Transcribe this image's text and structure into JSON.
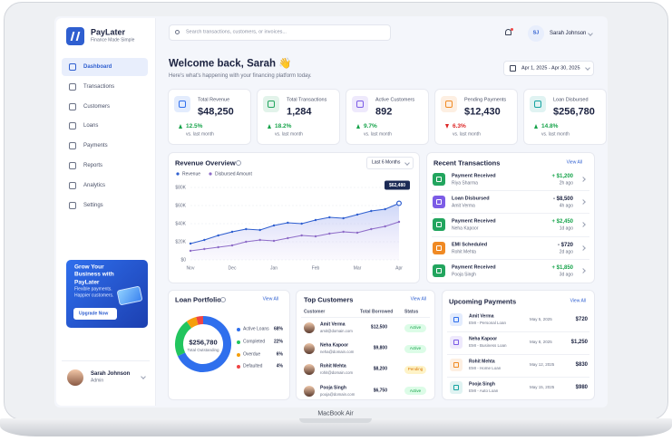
{
  "brand": {
    "name": "PayLater",
    "tagline": "Finance Made Simple"
  },
  "search_placeholder": "Search transactions, customers, or invoices...",
  "user": {
    "initials": "SJ",
    "name": "Sarah Johnson",
    "role": "Admin"
  },
  "nav": [
    "Dashboard",
    "Transactions",
    "Customers",
    "Loans",
    "Payments",
    "Reports",
    "Analytics",
    "Settings"
  ],
  "promo": {
    "title": "Grow Your Business with PayLater",
    "text": "Flexible payments. Happier customers.",
    "button": "Upgrade Now"
  },
  "welcome": {
    "title": "Welcome back, Sarah 👋",
    "subtitle": "Here's what's happening with your financing platform today."
  },
  "date_range": "Apr 1, 2025 - Apr 30, 2025",
  "stats": [
    {
      "label": "Total Revenue",
      "value": "$48,250",
      "change": "12.5%",
      "trend": "up",
      "note": "vs. last month",
      "color": "#2f6fed"
    },
    {
      "label": "Total Transactions",
      "value": "1,284",
      "change": "18.2%",
      "trend": "up",
      "note": "vs. last month",
      "color": "#22a55e"
    },
    {
      "label": "Active Customers",
      "value": "892",
      "change": "9.7%",
      "trend": "up",
      "note": "vs. last month",
      "color": "#7c5ce6"
    },
    {
      "label": "Pending Payments",
      "value": "$12,430",
      "change": "6.3%",
      "trend": "down",
      "note": "vs. last month",
      "color": "#f08a24"
    },
    {
      "label": "Loan Disbursed",
      "value": "$256,780",
      "change": "14.8%",
      "trend": "up",
      "note": "vs. last month",
      "color": "#14a3a0"
    }
  ],
  "revenue_chart": {
    "type": "line",
    "title": "Revenue Overview",
    "dropdown": "Last 6 Months",
    "categories": [
      "Nov",
      null,
      null,
      "Dec",
      null,
      null,
      "Jan",
      null,
      null,
      "Feb",
      null,
      null,
      "Mar",
      null,
      null,
      "Apr"
    ],
    "series": [
      {
        "name": "Revenue",
        "color": "#2f5fd0",
        "values": [
          18000,
          22000,
          27000,
          31000,
          34000,
          33000,
          38000,
          41000,
          40000,
          44000,
          47000,
          46000,
          50000,
          54000,
          56000,
          62480
        ],
        "tooltip_label": "$62,480"
      },
      {
        "name": "Disbursed Amount",
        "color": "#8e6cc8",
        "values": [
          10000,
          12000,
          14000,
          16000,
          20000,
          22000,
          21000,
          24000,
          27000,
          26000,
          29000,
          31000,
          30000,
          34000,
          37000,
          42000
        ]
      }
    ],
    "ylim": [
      0,
      80000
    ],
    "yticks": [
      {
        "value": 0,
        "label": "$0"
      },
      {
        "value": 20000,
        "label": "$20K"
      },
      {
        "value": 40000,
        "label": "$40K"
      },
      {
        "value": 60000,
        "label": "$60K"
      },
      {
        "value": 80000,
        "label": "$80K"
      }
    ],
    "grid": true
  },
  "recent_transactions": {
    "title": "Recent Transactions",
    "link": "View All",
    "rows": [
      {
        "type": "Payment Received",
        "name": "Riya Sharma",
        "amount": "+ $1,200",
        "time": "2h ago",
        "color": "#22a55e"
      },
      {
        "type": "Loan Disbursed",
        "name": "Amit Verma",
        "amount": "- $8,500",
        "time": "4h ago",
        "color": "#7c5ce6"
      },
      {
        "type": "Payment Received",
        "name": "Neha Kapoor",
        "amount": "+ $2,450",
        "time": "1d ago",
        "color": "#22a55e"
      },
      {
        "type": "EMI Scheduled",
        "name": "Rohit Mehta",
        "amount": "- $720",
        "time": "2d ago",
        "color": "#f08a24"
      },
      {
        "type": "Payment Received",
        "name": "Pooja Singh",
        "amount": "+ $1,850",
        "time": "3d ago",
        "color": "#22a55e"
      }
    ]
  },
  "loan_portfolio": {
    "type": "donut",
    "title": "Loan Portfolio",
    "link": "View All",
    "total": "$256,780",
    "total_label": "Total Outstanding",
    "categories": [
      "Active Loans",
      "Completed",
      "Overdue",
      "Defaulted"
    ],
    "values": [
      68,
      22,
      6,
      4
    ],
    "value_labels": [
      "68%",
      "22%",
      "6%",
      "4%"
    ],
    "colors": [
      "#2f6fed",
      "#22c55e",
      "#f59e0b",
      "#ef4444"
    ]
  },
  "top_customers": {
    "title": "Top Customers",
    "link": "View All",
    "columns": [
      "Customer",
      "Total Borrowed",
      "Status"
    ],
    "rows": [
      {
        "name": "Amit Verma",
        "email": "amit@domain.com",
        "amount": "$12,500",
        "status": "Active"
      },
      {
        "name": "Neha Kapoor",
        "email": "neha@domain.com",
        "amount": "$9,800",
        "status": "Active"
      },
      {
        "name": "Rohit Mehta",
        "email": "rohit@domain.com",
        "amount": "$8,200",
        "status": "Pending"
      },
      {
        "name": "Pooja Singh",
        "email": "pooja@domain.com",
        "amount": "$6,750",
        "status": "Active"
      }
    ]
  },
  "upcoming_payments": {
    "title": "Upcoming Payments",
    "link": "View All",
    "rows": [
      {
        "name": "Amit Verma",
        "desc": "EMI - Personal Loan",
        "date": "May 5, 2025",
        "amount": "$720",
        "color": "#2f6fed"
      },
      {
        "name": "Neha Kapoor",
        "desc": "EMI - Business Loan",
        "date": "May 8, 2025",
        "amount": "$1,250",
        "color": "#7c5ce6"
      },
      {
        "name": "Rohit Mehta",
        "desc": "EMI - Home Loan",
        "date": "May 12, 2025",
        "amount": "$830",
        "color": "#f08a24"
      },
      {
        "name": "Pooja Singh",
        "desc": "EMI - Auto Loan",
        "date": "May 15, 2025",
        "amount": "$980",
        "color": "#14a3a0"
      }
    ]
  },
  "device_label": "MacBook Air"
}
